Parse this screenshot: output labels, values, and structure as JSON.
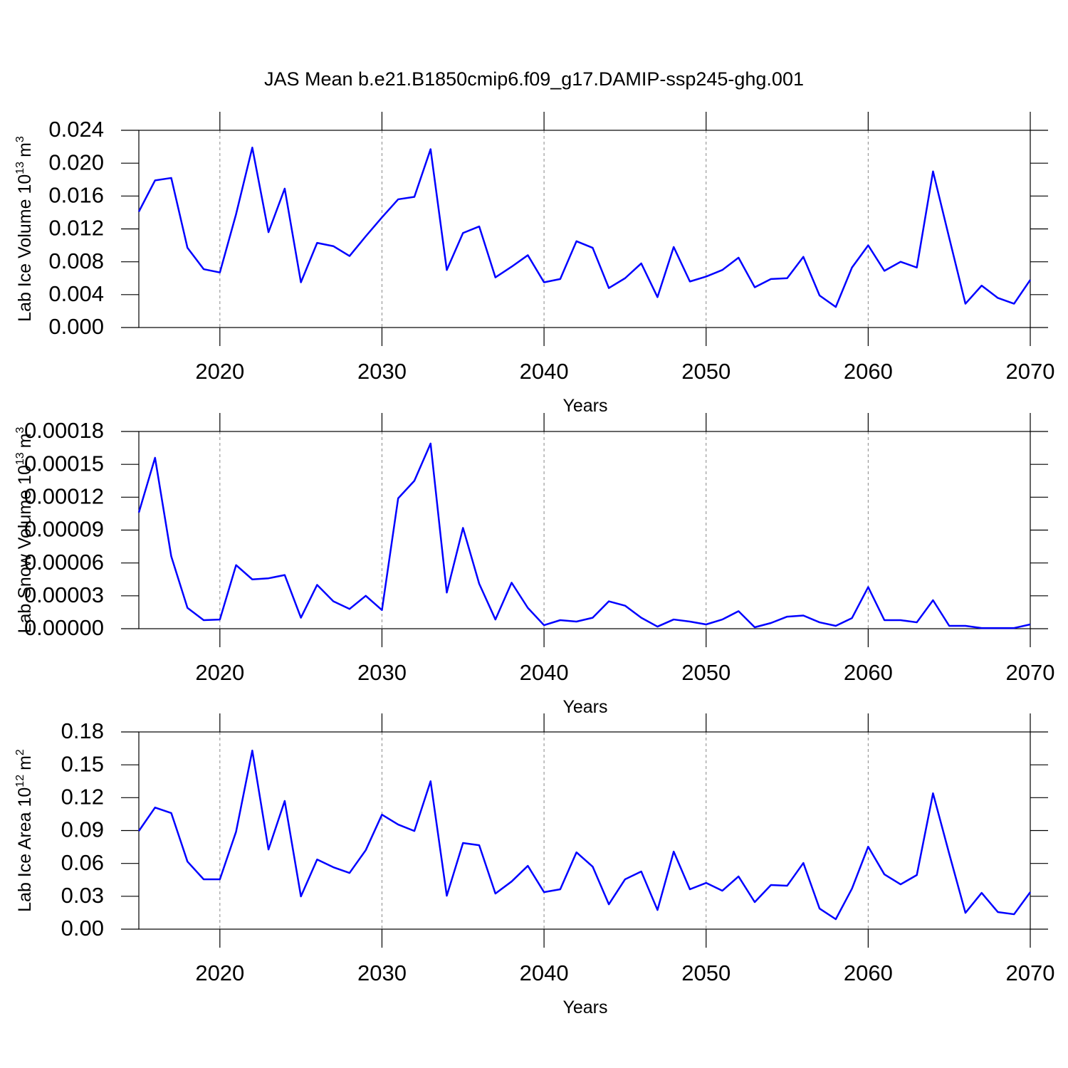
{
  "title": "JAS Mean b.e21.B1850cmip6.f09_g17.DAMIP-ssp245-ghg.001",
  "chart_data": [
    {
      "type": "line",
      "ylabel": "Lab Ice Volume 10",
      "ylabel_exponent": "13",
      "ylabel_unit": "m",
      "ylabel_unit_exponent": "3",
      "xlabel": "Years",
      "color": "#0000ff",
      "grid": true,
      "x": [
        2015,
        2016,
        2017,
        2018,
        2019,
        2020,
        2021,
        2022,
        2023,
        2024,
        2025,
        2026,
        2027,
        2028,
        2029,
        2030,
        2031,
        2032,
        2033,
        2034,
        2035,
        2036,
        2037,
        2038,
        2039,
        2040,
        2041,
        2042,
        2043,
        2044,
        2045,
        2046,
        2047,
        2048,
        2049,
        2050,
        2051,
        2052,
        2053,
        2054,
        2055,
        2056,
        2057,
        2058,
        2059,
        2060,
        2061,
        2062,
        2063,
        2064,
        2065,
        2066,
        2067,
        2068,
        2069,
        2070
      ],
      "values": [
        0.0141,
        0.0179,
        0.0182,
        0.0097,
        0.0071,
        0.0067,
        0.0138,
        0.0219,
        0.0116,
        0.0169,
        0.0055,
        0.0103,
        0.0099,
        0.0087,
        0.0111,
        0.0134,
        0.0156,
        0.0159,
        0.0217,
        0.007,
        0.0115,
        0.0123,
        0.0061,
        0.0074,
        0.0088,
        0.0055,
        0.0059,
        0.0105,
        0.0097,
        0.0048,
        0.006,
        0.0078,
        0.0037,
        0.0098,
        0.0056,
        0.0062,
        0.007,
        0.0085,
        0.0049,
        0.0059,
        0.006,
        0.0086,
        0.0039,
        0.0025,
        0.0073,
        0.01,
        0.0069,
        0.008,
        0.0073,
        0.019,
        0.0109,
        0.0029,
        0.0051,
        0.0036,
        0.0029,
        0.0058
      ],
      "xlim": [
        2015,
        2070
      ],
      "xticks": [
        2020,
        2030,
        2040,
        2050,
        2060,
        2070
      ],
      "ylim": [
        0,
        0.024
      ],
      "yticks": [
        {
          "value": 0,
          "label": "0.000"
        },
        0.004,
        0.008,
        0.012,
        0.016,
        {
          "value": 0.02,
          "label": "0.020"
        },
        0.024
      ]
    },
    {
      "type": "line",
      "ylabel": "Lab Snow Volume 10",
      "ylabel_exponent": "13",
      "ylabel_unit": "m",
      "ylabel_unit_exponent": "3",
      "xlabel": "Years",
      "color": "#0000ff",
      "grid": true,
      "x": [
        2015,
        2016,
        2017,
        2018,
        2019,
        2020,
        2021,
        2022,
        2023,
        2024,
        2025,
        2026,
        2027,
        2028,
        2029,
        2030,
        2031,
        2032,
        2033,
        2034,
        2035,
        2036,
        2037,
        2038,
        2039,
        2040,
        2041,
        2042,
        2043,
        2044,
        2045,
        2046,
        2047,
        2048,
        2049,
        2050,
        2051,
        2052,
        2053,
        2054,
        2055,
        2056,
        2057,
        2058,
        2059,
        2060,
        2061,
        2062,
        2063,
        2064,
        2065,
        2066,
        2067,
        2068,
        2069,
        2070
      ],
      "values": [
        0.000106,
        0.000156,
        6.6e-05,
        1.9e-05,
        7.8e-06,
        8.4e-06,
        5.8e-05,
        4.5e-05,
        4.6e-05,
        4.9e-05,
        1e-05,
        4e-05,
        2.5e-05,
        1.8e-05,
        3e-05,
        1.7e-05,
        0.000119,
        0.000135,
        0.000169,
        3.3e-05,
        9.2e-05,
        4.1e-05,
        8.4e-06,
        4.2e-05,
        1.9e-05,
        3.2e-06,
        7.8e-06,
        6.5e-06,
        1e-05,
        2.5e-05,
        2.1e-05,
        1e-05,
        1.9e-06,
        8.4e-06,
        6.5e-06,
        3.9e-06,
        8.4e-06,
        1.6e-05,
        1.3e-06,
        5.2e-06,
        1.1e-05,
        1.2e-05,
        5.8e-06,
        2.6e-06,
        9.7e-06,
        3.8e-05,
        7.8e-06,
        7.8e-06,
        5.8e-06,
        2.6e-05,
        2.6e-06,
        2.6e-06,
        6e-07,
        6e-07,
        6e-07,
        3.9e-06
      ],
      "xlim": [
        2015,
        2070
      ],
      "xticks": [
        2020,
        2030,
        2040,
        2050,
        2060,
        2070
      ],
      "ylim": [
        0,
        0.00018
      ],
      "yticks": [
        {
          "value": 0,
          "label": "0.00000"
        },
        3e-05,
        6e-05,
        9e-05,
        0.00012,
        0.00015,
        0.00018
      ]
    },
    {
      "type": "line",
      "ylabel": "Lab Ice Area 10",
      "ylabel_exponent": "12",
      "ylabel_unit": "m",
      "ylabel_unit_exponent": "2",
      "xlabel": "Years",
      "color": "#0000ff",
      "grid": true,
      "x": [
        2015,
        2016,
        2017,
        2018,
        2019,
        2020,
        2021,
        2022,
        2023,
        2024,
        2025,
        2026,
        2027,
        2028,
        2029,
        2030,
        2031,
        2032,
        2033,
        2034,
        2035,
        2036,
        2037,
        2038,
        2039,
        2040,
        2041,
        2042,
        2043,
        2044,
        2045,
        2046,
        2047,
        2048,
        2049,
        2050,
        2051,
        2052,
        2053,
        2054,
        2055,
        2056,
        2057,
        2058,
        2059,
        2060,
        2061,
        2062,
        2063,
        2064,
        2065,
        2066,
        2067,
        2068,
        2069,
        2070
      ],
      "values": [
        0.0896,
        0.111,
        0.106,
        0.0617,
        0.0455,
        0.0455,
        0.089,
        0.163,
        0.0727,
        0.117,
        0.0299,
        0.0636,
        0.0565,
        0.0513,
        0.0721,
        0.1045,
        0.0955,
        0.0896,
        0.135,
        0.0305,
        0.0786,
        0.0766,
        0.0325,
        0.0435,
        0.0578,
        0.0338,
        0.0364,
        0.0701,
        0.0571,
        0.0227,
        0.0455,
        0.0526,
        0.0175,
        0.0708,
        0.0364,
        0.0422,
        0.0351,
        0.0481,
        0.0247,
        0.0403,
        0.0396,
        0.0604,
        0.0188,
        0.0091,
        0.037,
        0.0753,
        0.05,
        0.0409,
        0.0494,
        0.124,
        0.0688,
        0.0149,
        0.0331,
        0.0156,
        0.0136,
        0.0338
      ],
      "xlim": [
        2015,
        2070
      ],
      "xticks": [
        2020,
        2030,
        2040,
        2050,
        2060,
        2070
      ],
      "ylim": [
        0,
        0.18
      ],
      "yticks": [
        {
          "value": 0,
          "label": "0.00"
        },
        0.03,
        0.06,
        0.09,
        0.12,
        0.15,
        0.18
      ]
    }
  ]
}
